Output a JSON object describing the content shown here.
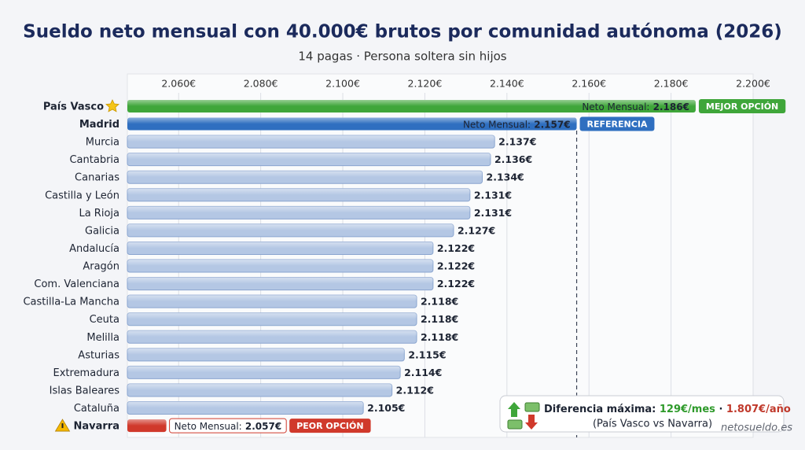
{
  "chart_data": {
    "type": "bar",
    "orientation": "horizontal",
    "title": "Sueldo neto mensual con 40.000€ brutos por comunidad autónoma (2026)",
    "subtitle": "14 pagas · Persona soltera sin hijos",
    "categories": [
      "País Vasco",
      "Madrid",
      "Murcia",
      "Cantabria",
      "Canarias",
      "Castilla y León",
      "La Rioja",
      "Galicia",
      "Andalucía",
      "Aragón",
      "Com. Valenciana",
      "Castilla-La Mancha",
      "Ceuta",
      "Melilla",
      "Asturias",
      "Extremadura",
      "Islas Baleares",
      "Cataluña",
      "Navarra"
    ],
    "values": [
      2186,
      2157,
      2137,
      2136,
      2134,
      2131,
      2131,
      2127,
      2122,
      2122,
      2122,
      2118,
      2118,
      2118,
      2115,
      2114,
      2112,
      2105,
      2057
    ],
    "value_labels": [
      "2.186€",
      "2.157€",
      "2.137€",
      "2.136€",
      "2.134€",
      "2.131€",
      "2.131€",
      "2.127€",
      "2.122€",
      "2.122€",
      "2.122€",
      "2.118€",
      "2.118€",
      "2.118€",
      "2.115€",
      "2.114€",
      "2.112€",
      "2.105€",
      "2.057€"
    ],
    "value_label_prefix": "Neto Mensual:",
    "tags": [
      "MEJOR OPCIÓN",
      "REFERENCIA",
      null,
      null,
      null,
      null,
      null,
      null,
      null,
      null,
      null,
      null,
      null,
      null,
      null,
      null,
      null,
      null,
      "PEOR OPCIÓN"
    ],
    "colors": [
      "#3fa63a",
      "#2f6fc0",
      "#b4c7e4",
      "#b4c7e4",
      "#b4c7e4",
      "#b4c7e4",
      "#b4c7e4",
      "#b4c7e4",
      "#b4c7e4",
      "#b4c7e4",
      "#b4c7e4",
      "#b4c7e4",
      "#b4c7e4",
      "#b4c7e4",
      "#b4c7e4",
      "#b4c7e4",
      "#b4c7e4",
      "#b4c7e4",
      "#d0392b"
    ],
    "xlim": [
      2047.5,
      2200
    ],
    "xticks": [
      {
        "value": 2060,
        "label": "2.060€"
      },
      {
        "value": 2080,
        "label": "2.080€"
      },
      {
        "value": 2100,
        "label": "2.100€"
      },
      {
        "value": 2120,
        "label": "2.120€"
      },
      {
        "value": 2140,
        "label": "2.140€"
      },
      {
        "value": 2160,
        "label": "2.160€"
      },
      {
        "value": 2180,
        "label": "2.180€"
      },
      {
        "value": 2200,
        "label": "2.200€"
      }
    ],
    "grid": true,
    "reference_line": 2157,
    "summary": {
      "label": "Diferencia máxima:",
      "monthly": "129€/mes",
      "separator": "·",
      "annual": "1.807€/año",
      "note": "(País Vasco vs Navarra)"
    },
    "watermark": "netosueldo.es"
  }
}
